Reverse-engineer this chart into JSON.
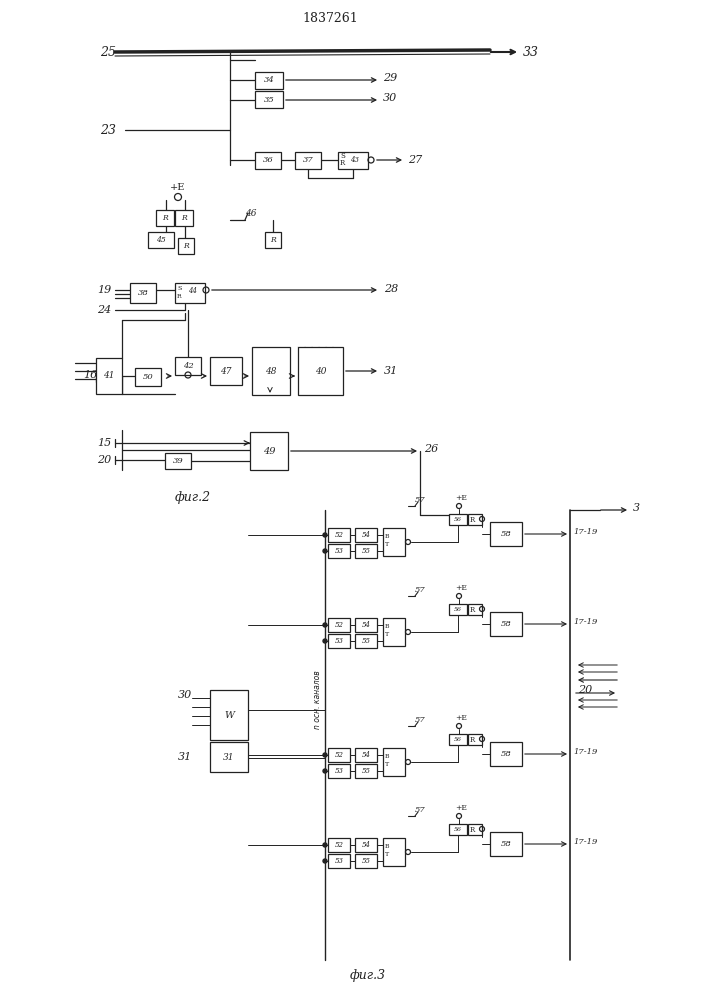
{
  "title": "1837261",
  "background": "#ffffff",
  "line_color": "#222222",
  "fig2_label": "фиг.2",
  "fig3_label": "фиг.3"
}
